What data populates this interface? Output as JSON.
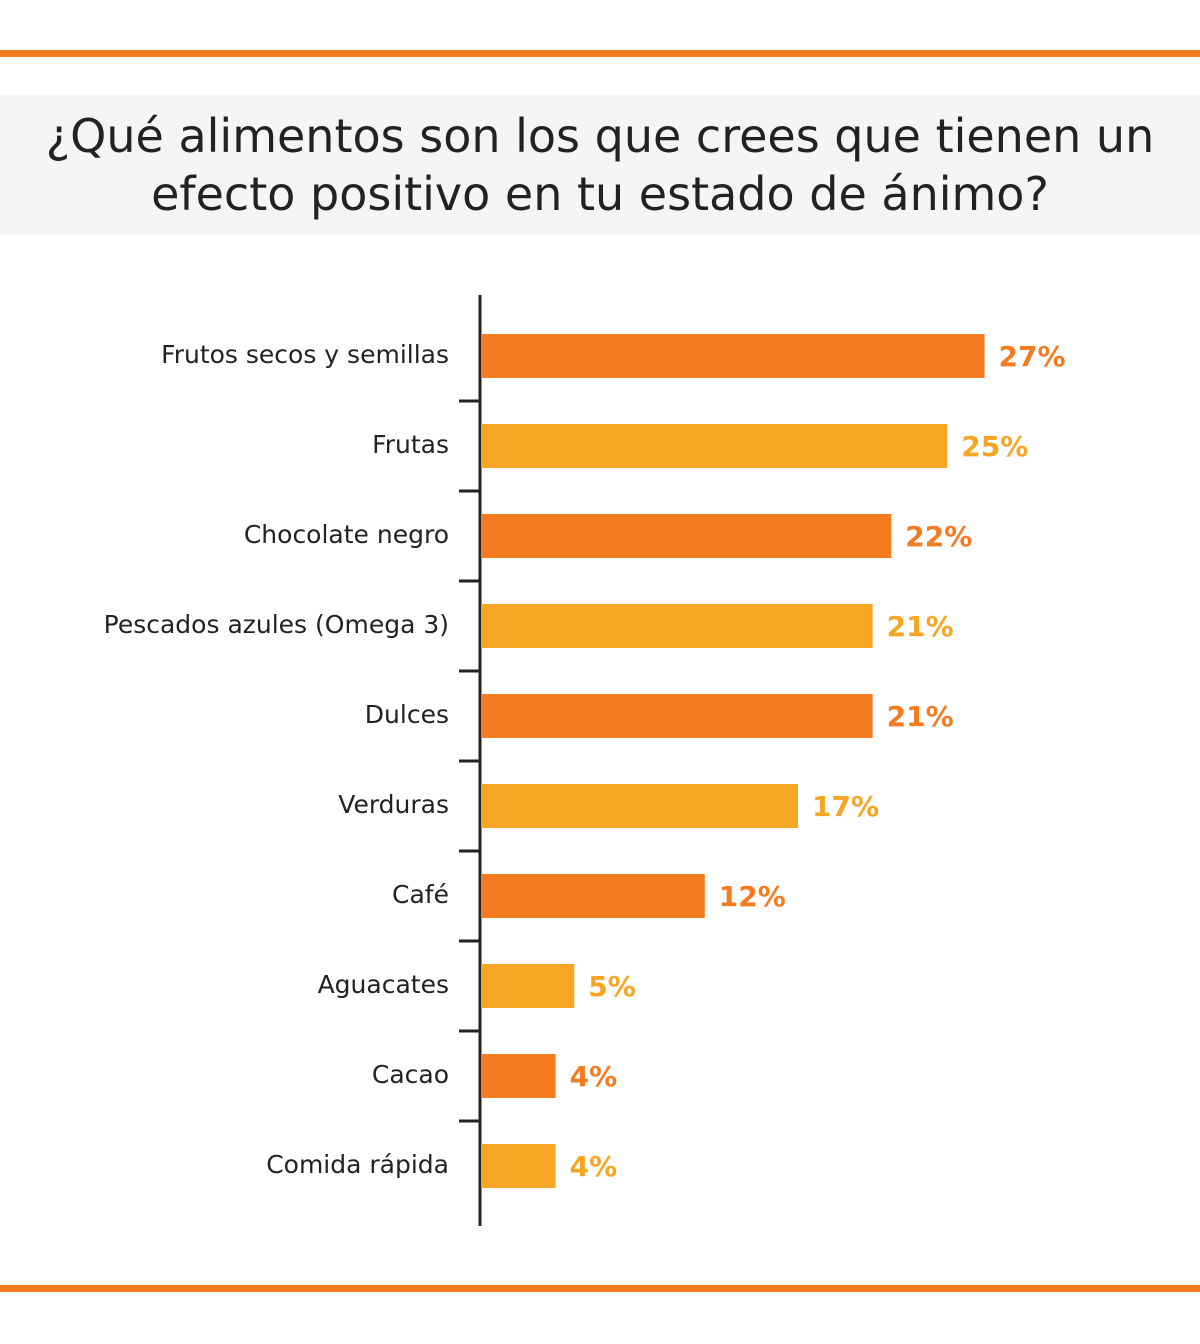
{
  "chart_data": {
    "type": "bar",
    "orientation": "horizontal",
    "title": "¿Qué alimentos son los que crees que tienen un efecto positivo en tu estado de ánimo?",
    "categories": [
      "Frutos secos y semillas",
      "Frutas",
      "Chocolate negro",
      "Pescados azules (Omega 3)",
      "Dulces",
      "Verduras",
      "Café",
      "Aguacates",
      "Cacao",
      "Comida rápida"
    ],
    "values": [
      27,
      25,
      22,
      21,
      21,
      17,
      12,
      5,
      4,
      4
    ],
    "value_labels": [
      "27%",
      "25%",
      "22%",
      "21%",
      "21%",
      "17%",
      "12%",
      "5%",
      "4%",
      "4%"
    ],
    "colors": [
      "#f47b20",
      "#f6a623",
      "#f47b20",
      "#f6a623",
      "#f47b20",
      "#f6a623",
      "#f47b20",
      "#f6a623",
      "#f47b20",
      "#f6a623"
    ]
  }
}
